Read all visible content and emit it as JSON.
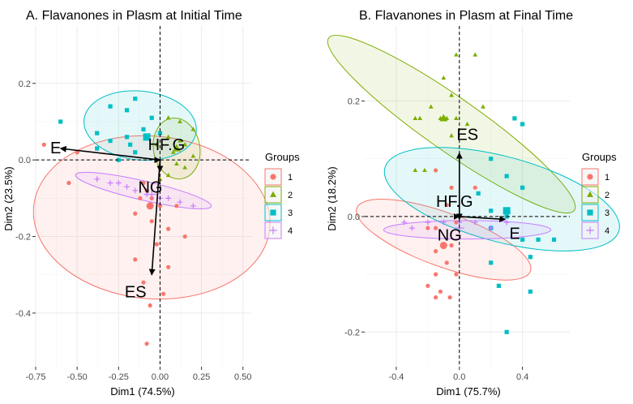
{
  "chart_data": [
    {
      "type": "scatter",
      "title": "A. Flavanones in Plasm at Initial Time",
      "xlabel": "Dim1 (74.5%)",
      "ylabel": "Dim2 (23.5%)",
      "xlim": [
        -0.75,
        0.55
      ],
      "ylim": [
        -0.54,
        0.35
      ],
      "xticks": [
        -0.75,
        -0.5,
        -0.25,
        0.0,
        0.25,
        0.5
      ],
      "xtick_labels": [
        "-0.75",
        "-0.50",
        "-0.25",
        "0.00",
        "0.25",
        "0.50"
      ],
      "yticks": [
        -0.4,
        -0.2,
        0.0,
        0.2
      ],
      "ytick_labels": [
        "-0.4",
        "-0.2",
        "0.0",
        "0.2"
      ],
      "grid": true,
      "legend": {
        "title": "Groups",
        "position": "right",
        "entries": [
          "1",
          "2",
          "3",
          "4"
        ]
      },
      "series": [
        {
          "name": "1",
          "color": "#F8766D",
          "shape": "circle",
          "points": [
            [
              -0.7,
              0.04
            ],
            [
              -0.5,
              0.02
            ],
            [
              -0.55,
              -0.06
            ],
            [
              -0.1,
              -0.06
            ],
            [
              -0.08,
              -0.08
            ],
            [
              -0.12,
              -0.1
            ],
            [
              -0.05,
              -0.1
            ],
            [
              0.0,
              -0.12
            ],
            [
              -0.15,
              -0.14
            ],
            [
              -0.05,
              -0.16
            ],
            [
              0.05,
              -0.18
            ],
            [
              0.1,
              -0.12
            ],
            [
              0.15,
              -0.2
            ],
            [
              -0.02,
              -0.22
            ],
            [
              -0.15,
              -0.26
            ],
            [
              0.05,
              -0.28
            ],
            [
              -0.1,
              -0.32
            ],
            [
              0.02,
              -0.35
            ],
            [
              -0.06,
              -0.38
            ],
            [
              -0.08,
              -0.48
            ]
          ],
          "centroid": [
            -0.06,
            -0.12
          ]
        },
        {
          "name": "2",
          "color": "#7CAE00",
          "shape": "triangle",
          "points": [
            [
              0.05,
              0.11
            ],
            [
              0.12,
              0.1
            ],
            [
              0.2,
              0.08
            ],
            [
              0.05,
              0.06
            ],
            [
              0.12,
              0.05
            ],
            [
              -0.02,
              0.04
            ],
            [
              0.15,
              0.04
            ],
            [
              0.08,
              0.02
            ],
            [
              0.2,
              0.01
            ],
            [
              0.1,
              -0.01
            ],
            [
              0.15,
              -0.02
            ],
            [
              0.05,
              -0.04
            ],
            [
              0.0,
              -0.05
            ]
          ],
          "centroid": [
            0.1,
            0.03
          ]
        },
        {
          "name": "3",
          "color": "#00BFC4",
          "shape": "square",
          "points": [
            [
              -0.6,
              0.1
            ],
            [
              -0.3,
              0.14
            ],
            [
              -0.2,
              0.13
            ],
            [
              -0.15,
              0.16
            ],
            [
              -0.05,
              0.11
            ],
            [
              -0.38,
              0.07
            ],
            [
              -0.3,
              0.05
            ],
            [
              -0.2,
              0.06
            ],
            [
              -0.18,
              0.04
            ],
            [
              -0.1,
              0.08
            ],
            [
              0.0,
              0.07
            ],
            [
              -0.15,
              0.02
            ],
            [
              -0.38,
              0.03
            ],
            [
              -0.25,
              0.0
            ]
          ],
          "centroid": [
            -0.08,
            0.06
          ]
        },
        {
          "name": "4",
          "color": "#C77CFF",
          "shape": "cross",
          "points": [
            [
              -0.38,
              -0.05
            ],
            [
              -0.3,
              -0.06
            ],
            [
              -0.25,
              -0.06
            ],
            [
              -0.2,
              -0.07
            ],
            [
              -0.15,
              -0.08
            ],
            [
              -0.08,
              -0.09
            ],
            [
              0.0,
              -0.1
            ],
            [
              0.05,
              -0.1
            ],
            [
              0.12,
              -0.11
            ],
            [
              0.2,
              -0.12
            ]
          ],
          "centroid": [
            -0.05,
            -0.09
          ]
        }
      ],
      "ellipses": [
        {
          "group": "1",
          "color": "#F8766D",
          "center": [
            -0.05,
            -0.15
          ],
          "semi_axes": [
            0.49,
            0.31
          ],
          "angle_deg": 85
        },
        {
          "group": "2",
          "color": "#7CAE00",
          "center": [
            0.1,
            0.03
          ],
          "semi_axes": [
            0.14,
            0.08
          ],
          "angle_deg": 10
        },
        {
          "group": "3",
          "color": "#00BFC4",
          "center": [
            -0.12,
            0.09
          ],
          "semi_axes": [
            0.34,
            0.09
          ],
          "angle_deg": -6
        },
        {
          "group": "4",
          "color": "#C77CFF",
          "center": [
            -0.1,
            -0.08
          ],
          "semi_axes": [
            0.42,
            0.025
          ],
          "angle_deg": -13
        }
      ],
      "arrows": [
        {
          "label": "E",
          "end": [
            -0.6,
            0.03
          ]
        },
        {
          "label": "HF.G",
          "end": [
            0.0,
            0.0
          ]
        },
        {
          "label": "NG",
          "end": [
            0.0,
            -0.03
          ]
        },
        {
          "label": "ES",
          "end": [
            -0.05,
            -0.3
          ]
        }
      ]
    },
    {
      "type": "scatter",
      "title": "B. Flavanones in Plasm at Final Time",
      "xlabel": "Dim1 (75.7%)",
      "ylabel": "Dim2 (18.2%)",
      "xlim": [
        -0.6,
        0.7
      ],
      "ylim": [
        -0.26,
        0.33
      ],
      "xticks": [
        -0.4,
        0.0,
        0.4
      ],
      "xtick_labels": [
        "-0.4",
        "0.0",
        "0.4"
      ],
      "yticks": [
        -0.2,
        0.0,
        0.2
      ],
      "ytick_labels": [
        "-0.2",
        "0.0",
        "0.2"
      ],
      "grid": true,
      "legend": {
        "title": "Groups",
        "position": "right",
        "entries": [
          "1",
          "2",
          "3",
          "4"
        ]
      },
      "series": [
        {
          "name": "1",
          "color": "#F8766D",
          "shape": "circle",
          "points": [
            [
              -0.15,
              0.08
            ],
            [
              -0.05,
              0.05
            ],
            [
              0.1,
              0.05
            ],
            [
              -0.08,
              0.02
            ],
            [
              -0.15,
              -0.02
            ],
            [
              -0.02,
              -0.01
            ],
            [
              -0.2,
              -0.02
            ],
            [
              -0.05,
              -0.05
            ],
            [
              -0.15,
              -0.06
            ],
            [
              -0.08,
              -0.08
            ],
            [
              -0.15,
              -0.1
            ],
            [
              -0.02,
              -0.1
            ],
            [
              -0.2,
              -0.12
            ],
            [
              -0.12,
              -0.13
            ],
            [
              -0.06,
              -0.14
            ],
            [
              -0.15,
              -0.14
            ]
          ],
          "centroid": [
            -0.1,
            -0.05
          ]
        },
        {
          "name": "2",
          "color": "#7CAE00",
          "shape": "triangle",
          "points": [
            [
              -0.02,
              0.28
            ],
            [
              0.1,
              0.28
            ],
            [
              -0.1,
              0.24
            ],
            [
              -0.05,
              0.21
            ],
            [
              -0.18,
              0.19
            ],
            [
              0.15,
              0.19
            ],
            [
              -0.28,
              0.17
            ],
            [
              -0.25,
              0.17
            ],
            [
              -0.12,
              0.17
            ],
            [
              -0.1,
              0.17
            ],
            [
              -0.08,
              0.17
            ],
            [
              -0.02,
              0.17
            ],
            [
              0.05,
              0.16
            ],
            [
              -0.05,
              0.14
            ],
            [
              -0.22,
              0.08
            ],
            [
              -0.28,
              0.08
            ]
          ],
          "centroid": [
            -0.1,
            0.17
          ]
        },
        {
          "name": "3",
          "color": "#00BFC4",
          "shape": "square",
          "points": [
            [
              0.35,
              0.17
            ],
            [
              0.4,
              0.16
            ],
            [
              0.2,
              0.1
            ],
            [
              0.3,
              0.07
            ],
            [
              0.12,
              0.04
            ],
            [
              0.4,
              0.05
            ],
            [
              0.2,
              0.01
            ],
            [
              0.3,
              0.0
            ],
            [
              0.2,
              -0.02
            ],
            [
              0.4,
              -0.04
            ],
            [
              0.5,
              -0.04
            ],
            [
              0.6,
              -0.04
            ],
            [
              0.45,
              -0.07
            ],
            [
              0.2,
              -0.08
            ],
            [
              0.25,
              -0.12
            ],
            [
              0.45,
              -0.13
            ],
            [
              0.3,
              -0.2
            ]
          ],
          "centroid": [
            0.3,
            0.01
          ]
        },
        {
          "name": "4",
          "color": "#C77CFF",
          "shape": "cross",
          "points": [
            [
              -0.35,
              -0.01
            ],
            [
              -0.3,
              -0.02
            ],
            [
              -0.2,
              -0.01
            ],
            [
              -0.1,
              -0.01
            ],
            [
              0.0,
              -0.01
            ],
            [
              0.1,
              -0.01
            ],
            [
              0.2,
              -0.02
            ],
            [
              0.3,
              -0.01
            ]
          ],
          "centroid": [
            0.0,
            -0.02
          ]
        }
      ],
      "ellipses": [
        {
          "group": "1",
          "color": "#F8766D",
          "center": [
            -0.1,
            -0.04
          ],
          "semi_axes": [
            0.17,
            0.16
          ],
          "angle_deg": 70
        },
        {
          "group": "2",
          "color": "#7CAE00",
          "center": [
            -0.05,
            0.16
          ],
          "semi_axes": [
            0.17,
            0.26
          ],
          "angle_deg": 55
        },
        {
          "group": "3",
          "color": "#00BFC4",
          "center": [
            0.27,
            0.03
          ],
          "semi_axes": [
            0.27,
            0.21
          ],
          "angle_deg": 75
        },
        {
          "group": "4",
          "color": "#C77CFF",
          "center": [
            0.05,
            -0.023
          ],
          "semi_axes": [
            0.53,
            0.016
          ],
          "angle_deg": 0
        }
      ],
      "arrows": [
        {
          "label": "ES",
          "end": [
            0.0,
            0.11
          ]
        },
        {
          "label": "HF.G",
          "end": [
            0.0,
            0.0
          ]
        },
        {
          "label": "NG",
          "end": [
            0.0,
            -0.005
          ]
        },
        {
          "label": "E",
          "end": [
            0.29,
            -0.005
          ]
        }
      ]
    }
  ]
}
